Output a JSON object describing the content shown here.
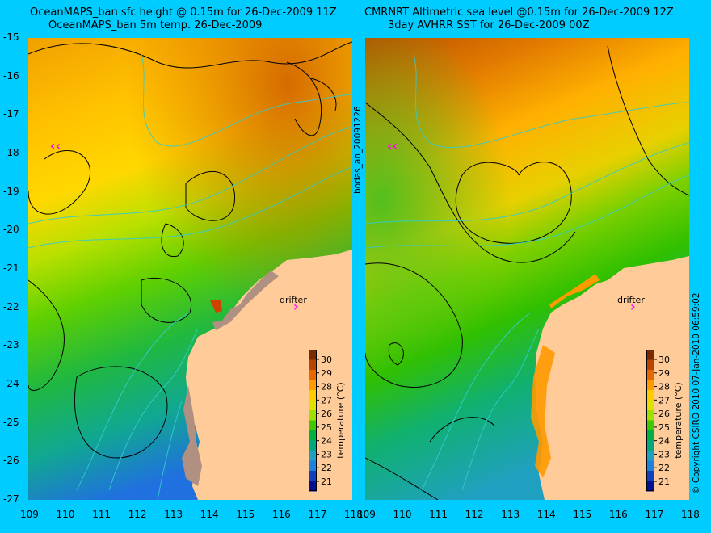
{
  "left_panel": {
    "title_line1": "OceanMAPS_ban sfc height @ 0.15m for 26-Dec-2009 11Z",
    "title_line2": "OceanMAPS_ban 5m temp. 26-Dec-2009",
    "drifter_label": "drifter"
  },
  "right_panel": {
    "title_line1": "CMRNRT Altimetric sea level  @0.15m  for 26-Dec-2009 12Z",
    "title_line2": "3day AVHRR SST for 26-Dec-2009 00Z",
    "drifter_label": "drifter"
  },
  "x_axis_ticks": [
    "109",
    "110",
    "111",
    "112",
    "113",
    "114",
    "115",
    "116",
    "117",
    "118"
  ],
  "y_axis_ticks": [
    "-15",
    "-16",
    "-17",
    "-18",
    "-19",
    "-20",
    "-21",
    "-22",
    "-23",
    "-24",
    "-25",
    "-26",
    "-27"
  ],
  "colorbar": {
    "label": "temperature (°C)",
    "ticks": [
      "30",
      "29",
      "28",
      "27",
      "26",
      "25",
      "24",
      "23",
      "22",
      "21"
    ],
    "colors": [
      "#7a2a00",
      "#b84400",
      "#e86800",
      "#ff9a00",
      "#ffcc00",
      "#e0e000",
      "#a0e000",
      "#40c800",
      "#00b040",
      "#00a880",
      "#20a0c0",
      "#2080e0",
      "#1040c0",
      "#001090"
    ]
  },
  "side_labels": {
    "middle": "bodas_an_20091226",
    "right": "© Copyright CSIRO 2010   07-Jan-2010 06:59:02"
  },
  "colors": {
    "background": "#00ccff",
    "land": "#ffcc99",
    "drifter": "#ff00ff",
    "contour": "#000000",
    "bathymetry": "#33cccc"
  }
}
